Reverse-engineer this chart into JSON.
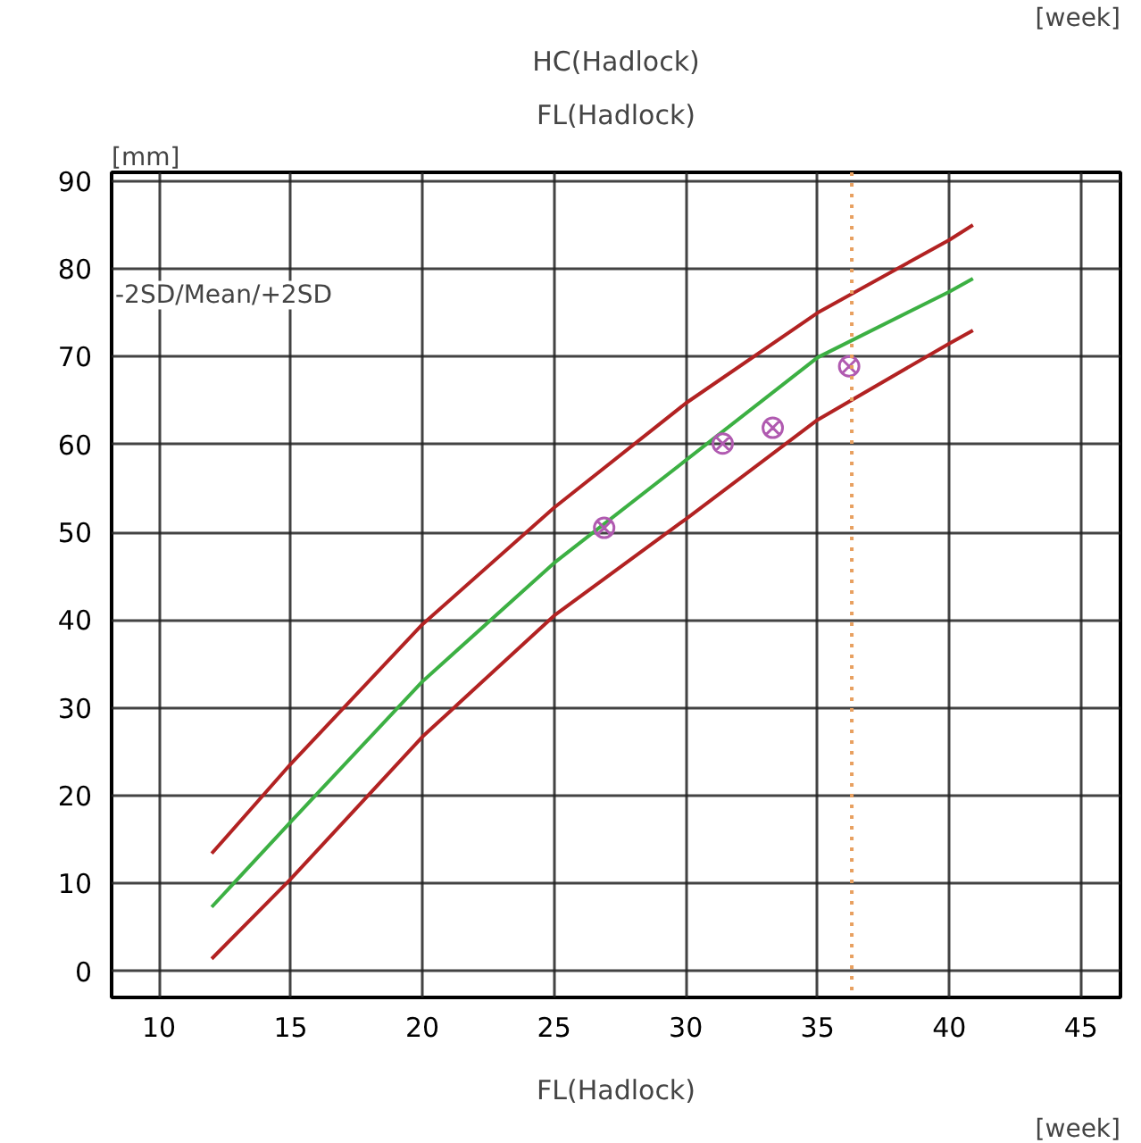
{
  "chart_data": {
    "type": "line",
    "title": "HC(Hadlock)",
    "subtitle": "FL(Hadlock)",
    "xlabel": "FL(Hadlock)",
    "ylabel": "[mm]",
    "annotations": [
      "-2SD/Mean/+2SD",
      "[week]",
      "[week]"
    ],
    "x": [
      12,
      15,
      20,
      25,
      30,
      35,
      40,
      40.9
    ],
    "series": [
      {
        "color": "#b22222",
        "values": [
          13.4,
          23.6,
          39.5,
          52.8,
          64.7,
          75,
          83.3,
          85
        ]
      },
      {
        "color": "#3cb043",
        "values": [
          7.3,
          17,
          33,
          46.5,
          58.2,
          69.9,
          77.4,
          78.9
        ]
      },
      {
        "color": "#b22222",
        "values": [
          1.4,
          10.5,
          26.7,
          40.5,
          51.5,
          62.8,
          71.5,
          73
        ]
      },
      {
        "type": "scatter",
        "color": "#b05ab0",
        "marker": "cross",
        "x": [
          26.9,
          31.4,
          33.3,
          36.2
        ],
        "values": [
          50.5,
          60.1,
          61.9,
          68.9
        ]
      }
    ],
    "ref_lines": [
      {
        "axis": "x",
        "value": 36.3,
        "color": "#e8a060",
        "line_style": "dotted"
      }
    ],
    "xlim": [
      8.2,
      46.5
    ],
    "ylim": [
      -3,
      91
    ],
    "xticks": [
      10,
      15,
      20,
      25,
      30,
      35,
      40,
      45
    ],
    "yticks": [
      0,
      10,
      20,
      30,
      40,
      50,
      60,
      70,
      80,
      90
    ],
    "grid": true,
    "line_style": "solid"
  }
}
